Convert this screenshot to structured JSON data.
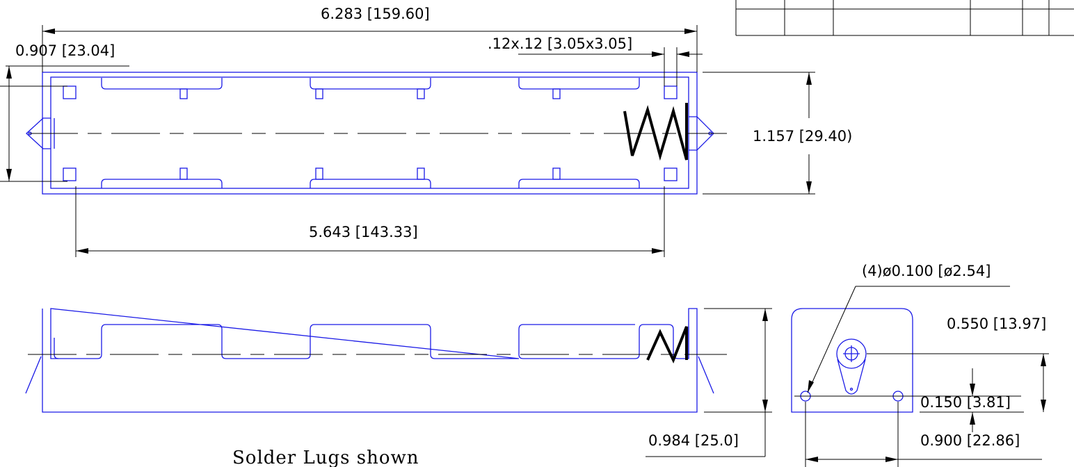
{
  "colors": {
    "part_outline": "#1a1ae6",
    "dimension_lines": "#000000",
    "background": "#ffffff"
  },
  "dimensions": {
    "overall_length": "6.283 [159.60]",
    "lug_offset": "0.907 [23.04]",
    "mount_pad_size": ".12x.12 [3.05x3.05]",
    "overall_width": "1.157 [29.40)",
    "mount_pad_spacing": "5.643 [143.33]",
    "mount_hole_count_diameter": "(4)ø0.100 [ø2.54]",
    "height": "0.984 [25.0]",
    "center_height": "0.550 [13.97]",
    "hole_offset": "0.150 [3.81]",
    "hole_spacing": "0.900 [22.86]"
  },
  "notes": {
    "solder_lugs": "Solder Lugs shown"
  }
}
